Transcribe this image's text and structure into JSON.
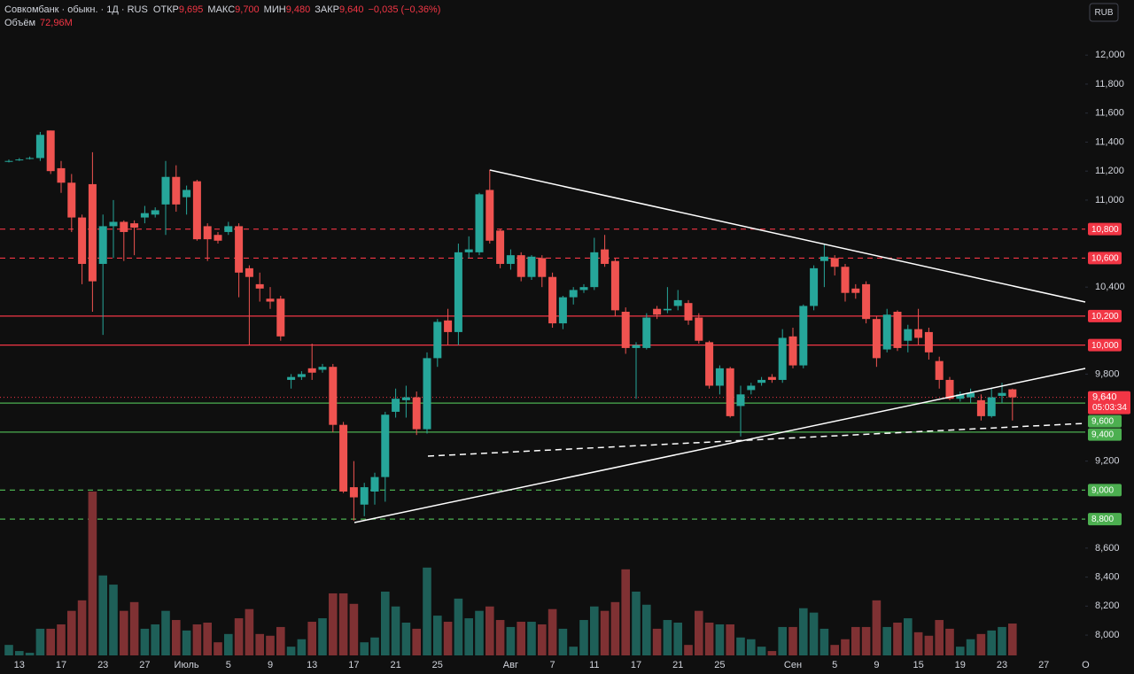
{
  "header": {
    "title": "Совкомбанк · обыкн. · 1Д · RUS",
    "fields": [
      {
        "name": "ОТКР",
        "value": 9.695,
        "label": "9,695"
      },
      {
        "name": "МАКС",
        "value": 9.7,
        "label": "9,700"
      },
      {
        "name": "МИН",
        "value": 9.48,
        "label": "9,480"
      },
      {
        "name": "ЗАКР",
        "value": 9.64,
        "label": "9,640"
      }
    ],
    "change": {
      "value": -0.035,
      "label": "−0,035"
    },
    "change_pct": {
      "value": -0.36,
      "label": "(−0,36%)"
    },
    "volume_name": "Объём",
    "volume_label": "72,96M",
    "currency": "RUB"
  },
  "chart_data": {
    "type": "candlestick",
    "categories": [
      null,
      "13",
      null,
      null,
      null,
      "17",
      null,
      null,
      null,
      "23",
      null,
      null,
      null,
      "27",
      null,
      null,
      null,
      "Июль",
      null,
      null,
      null,
      "5",
      null,
      null,
      null,
      "9",
      null,
      null,
      null,
      "13",
      null,
      null,
      null,
      "17",
      null,
      null,
      null,
      "21",
      null,
      null,
      null,
      "25",
      null,
      null,
      null,
      null,
      null,
      null,
      "Авг",
      null,
      null,
      null,
      "7",
      null,
      null,
      null,
      "11",
      null,
      null,
      null,
      "17",
      null,
      null,
      null,
      "21",
      null,
      null,
      null,
      "25",
      null,
      null,
      null,
      null,
      null,
      null,
      "Сен",
      null,
      null,
      null,
      "5",
      null,
      null,
      null,
      "9",
      null,
      null,
      null,
      "15",
      null,
      null,
      null,
      "19",
      null,
      null,
      null,
      "23",
      null,
      null,
      null,
      "27",
      null,
      null,
      null,
      "О"
    ],
    "open": [
      11.27,
      11.28,
      11.29,
      11.29,
      11.48,
      11.22,
      11.12,
      10.88,
      11.11,
      10.56,
      10.82,
      10.85,
      10.84,
      10.88,
      10.9,
      10.97,
      11.16,
      11.02,
      11.13,
      10.82,
      10.76,
      10.78,
      10.82,
      10.53,
      10.42,
      10.32,
      10.32,
      9.76,
      9.78,
      9.84,
      9.83,
      9.85,
      9.45,
      9.02,
      8.9,
      8.99,
      9.09,
      9.54,
      9.62,
      9.64,
      9.42,
      9.91,
      10.17,
      10.09,
      10.64,
      10.64,
      11.07,
      10.79,
      10.56,
      10.62,
      10.47,
      10.6,
      10.47,
      10.15,
      10.33,
      10.38,
      10.4,
      10.66,
      10.58,
      10.23,
      9.98,
      9.98,
      10.25,
      10.24,
      10.27,
      10.29,
      10.19,
      10.02,
      9.72,
      9.84,
      9.58,
      9.69,
      9.74,
      9.78,
      9.76,
      10.06,
      9.86,
      10.27,
      10.58,
      10.6,
      10.54,
      10.39,
      10.42,
      10.18,
      9.97,
      10.23,
      10.03,
      10.11,
      10.09,
      9.89,
      9.76,
      9.63,
      9.64,
      9.62,
      9.51,
      9.65,
      9.695,
      null,
      null,
      null,
      null,
      null,
      null,
      null
    ],
    "high": [
      11.28,
      11.29,
      11.3,
      11.47,
      11.48,
      11.27,
      11.18,
      10.9,
      11.33,
      10.9,
      11.0,
      10.86,
      10.86,
      10.96,
      10.95,
      11.27,
      11.24,
      11.1,
      11.14,
      10.84,
      10.78,
      10.85,
      10.84,
      10.55,
      10.5,
      10.4,
      10.34,
      9.8,
      9.82,
      10.01,
      9.87,
      9.87,
      9.47,
      9.2,
      9.05,
      9.12,
      9.54,
      9.7,
      9.72,
      9.68,
      9.95,
      10.18,
      10.25,
      10.7,
      10.75,
      11.05,
      11.21,
      10.8,
      10.66,
      10.64,
      10.62,
      10.62,
      10.5,
      10.34,
      10.4,
      10.42,
      10.74,
      10.76,
      10.6,
      10.26,
      10.02,
      10.22,
      10.27,
      10.4,
      10.38,
      10.31,
      10.22,
      10.03,
      9.86,
      9.85,
      9.72,
      9.74,
      9.78,
      9.8,
      10.11,
      10.12,
      10.28,
      10.55,
      10.7,
      10.62,
      10.56,
      10.42,
      10.44,
      10.2,
      10.25,
      10.24,
      10.14,
      10.25,
      10.12,
      9.92,
      9.78,
      9.68,
      9.7,
      9.66,
      9.7,
      9.74,
      9.7,
      null,
      null,
      null,
      null,
      null,
      null,
      null
    ],
    "low": [
      11.26,
      11.27,
      11.28,
      11.27,
      11.18,
      11.05,
      10.78,
      10.42,
      10.23,
      10.07,
      10.6,
      10.58,
      10.62,
      10.84,
      10.88,
      10.76,
      10.92,
      10.9,
      10.72,
      10.58,
      10.7,
      10.76,
      10.33,
      10.0,
      10.3,
      10.25,
      10.03,
      9.7,
      9.76,
      9.76,
      9.81,
      9.4,
      8.98,
      8.79,
      8.82,
      8.9,
      8.92,
      9.5,
      9.5,
      9.38,
      9.39,
      9.85,
      10.0,
      10.0,
      10.6,
      10.62,
      10.7,
      10.53,
      10.52,
      10.44,
      10.45,
      10.4,
      10.12,
      10.11,
      10.28,
      10.36,
      10.38,
      10.54,
      10.2,
      9.94,
      9.63,
      9.97,
      10.18,
      10.22,
      10.24,
      10.14,
      10.01,
      9.7,
      9.66,
      9.5,
      9.37,
      9.66,
      9.72,
      9.74,
      9.74,
      9.84,
      9.84,
      10.24,
      10.4,
      10.48,
      10.3,
      10.32,
      10.15,
      9.85,
      9.95,
      9.96,
      9.95,
      10.0,
      9.9,
      9.7,
      9.62,
      9.61,
      9.6,
      9.48,
      9.5,
      9.6,
      9.48,
      null,
      null,
      null,
      null,
      null,
      null,
      null
    ],
    "close": [
      11.27,
      11.28,
      11.29,
      11.45,
      11.2,
      11.12,
      10.88,
      10.56,
      10.44,
      10.82,
      10.85,
      10.78,
      10.81,
      10.91,
      10.93,
      11.16,
      10.97,
      11.07,
      10.73,
      10.73,
      10.72,
      10.82,
      10.5,
      10.47,
      10.39,
      10.3,
      10.06,
      9.78,
      9.8,
      9.81,
      9.85,
      9.45,
      8.99,
      8.95,
      9.02,
      9.09,
      9.52,
      9.63,
      9.64,
      9.42,
      9.91,
      10.16,
      10.09,
      10.64,
      10.66,
      11.04,
      10.72,
      10.56,
      10.62,
      10.47,
      10.61,
      10.47,
      10.15,
      10.33,
      10.38,
      10.4,
      10.64,
      10.56,
      10.24,
      9.98,
      10.0,
      10.19,
      10.21,
      10.25,
      10.31,
      10.17,
      10.03,
      9.72,
      9.84,
      9.51,
      9.66,
      9.72,
      9.76,
      9.76,
      10.05,
      9.86,
      10.27,
      10.53,
      10.61,
      10.54,
      10.36,
      10.36,
      10.18,
      9.91,
      10.21,
      9.98,
      10.11,
      10.05,
      9.95,
      9.76,
      9.63,
      9.66,
      9.67,
      9.51,
      9.64,
      9.67,
      9.64,
      null,
      null,
      null,
      null,
      null,
      null,
      null
    ],
    "volume": [
      24,
      10,
      6,
      61,
      61,
      71,
      102,
      126,
      375,
      183,
      162,
      102,
      122,
      61,
      71,
      102,
      81,
      57,
      71,
      75,
      30,
      49,
      85,
      106,
      49,
      45,
      65,
      20,
      37,
      77,
      85,
      142,
      142,
      118,
      30,
      41,
      146,
      112,
      75,
      61,
      201,
      91,
      77,
      130,
      85,
      102,
      112,
      81,
      65,
      77,
      77,
      71,
      106,
      61,
      20,
      81,
      112,
      102,
      122,
      197,
      146,
      116,
      61,
      81,
      75,
      24,
      102,
      75,
      71,
      71,
      41,
      37,
      20,
      10,
      65,
      65,
      108,
      98,
      61,
      24,
      37,
      65,
      65,
      126,
      65,
      75,
      85,
      53,
      45,
      81,
      61,
      20,
      37,
      49,
      57,
      65,
      72.96,
      null,
      null,
      null,
      null,
      null,
      null,
      null
    ],
    "up_color": "#26a69a",
    "down_color": "#ef5350",
    "volume_up_color": "#1e5f58",
    "volume_down_color": "#7f3133",
    "ylim": [
      7.86,
      12.38
    ],
    "yticks": [
      {
        "value": 12,
        "label": "12,000"
      },
      {
        "value": 11.8,
        "label": "11,800"
      },
      {
        "value": 11.6,
        "label": "11,600"
      },
      {
        "value": 11.4,
        "label": "11,400"
      },
      {
        "value": 11.2,
        "label": "11,200"
      },
      {
        "value": 11,
        "label": "11,000"
      },
      {
        "value": 10.4,
        "label": "10,400"
      },
      {
        "value": 9.8,
        "label": "9,800"
      },
      {
        "value": 9.2,
        "label": "9,200"
      },
      {
        "value": 8.6,
        "label": "8,600"
      },
      {
        "value": 8.4,
        "label": "8,400"
      },
      {
        "value": 8.2,
        "label": "8,200"
      },
      {
        "value": 8,
        "label": "8,000"
      }
    ],
    "last_price": {
      "value": 9.64,
      "label": "9,640",
      "countdown": "05:03:34",
      "color": "#f23645"
    },
    "levels": [
      {
        "value": 10.8,
        "label": "10,800",
        "color": "#f23645",
        "style": "dashed"
      },
      {
        "value": 10.6,
        "label": "10,600",
        "color": "#f23645",
        "style": "dashed"
      },
      {
        "value": 10.2,
        "label": "10,200",
        "color": "#f23645",
        "style": "solid"
      },
      {
        "value": 10,
        "label": "10,000",
        "color": "#f23645",
        "style": "solid"
      },
      {
        "value": 9.6,
        "label": "9,600",
        "color": "#4caf50",
        "style": "solid"
      },
      {
        "value": 9.4,
        "label": "9,400",
        "color": "#4caf50",
        "style": "solid"
      },
      {
        "value": 9,
        "label": "9,000",
        "color": "#4caf50",
        "style": "dashed"
      },
      {
        "value": 8.8,
        "label": "8,800",
        "color": "#4caf50",
        "style": "dashed"
      }
    ]
  }
}
